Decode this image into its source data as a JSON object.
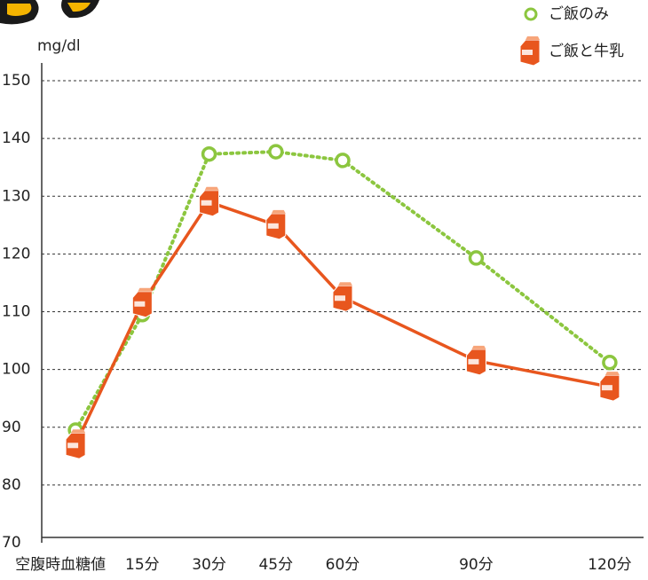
{
  "chart_data": {
    "type": "line",
    "ylabel": "mg/dl",
    "xlim": [
      -7.6,
      127.6
    ],
    "xticks": [
      {
        "value": 0,
        "label": "空腹時血糖値"
      },
      {
        "value": 15,
        "label": "15分"
      },
      {
        "value": 30,
        "label": "30分"
      },
      {
        "value": 45,
        "label": "45分"
      },
      {
        "value": 60,
        "label": "60分"
      },
      {
        "value": 90,
        "label": "90分"
      },
      {
        "value": 120,
        "label": "120分"
      }
    ],
    "x": [
      0,
      15,
      30,
      45,
      60,
      90,
      120
    ],
    "ylim": [
      70,
      150
    ],
    "yticks": [
      70,
      80,
      90,
      100,
      110,
      120,
      130,
      140,
      150
    ],
    "grid": true,
    "legend": "top-right",
    "series": [
      {
        "name": "ご飯のみ",
        "color": "#8cc63f",
        "values": [
          89.5,
          109.5,
          137.3,
          137.7,
          136.2,
          119.3,
          101.2
        ]
      },
      {
        "name": "ご飯と牛乳",
        "color": "#e8561e",
        "values": [
          87,
          111.5,
          129,
          125,
          112.5,
          101.5,
          97
        ]
      }
    ]
  }
}
